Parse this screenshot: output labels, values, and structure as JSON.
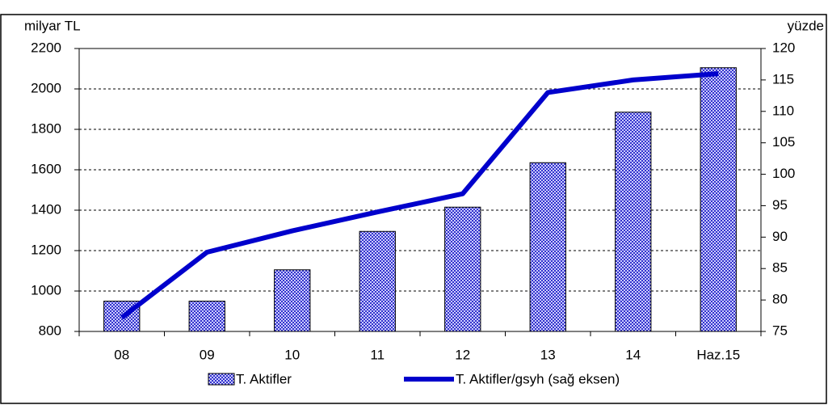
{
  "chart_data": {
    "type": "bar",
    "y_label": "milyar TL",
    "y2_label": "yüzde",
    "categories": [
      "08",
      "09",
      "10",
      "11",
      "12",
      "13",
      "14",
      "Haz.15"
    ],
    "series": [
      {
        "name": "T. Aktifler",
        "type": "bar",
        "color": "#3333cc",
        "values": [
          950,
          950,
          1105,
          1295,
          1415,
          1635,
          1885,
          2105
        ]
      },
      {
        "name": "T. Aktifler/gsyh (sağ eksen)",
        "type": "line",
        "axis": "y2",
        "color": "#0000cc",
        "values": [
          77.2,
          87.6,
          91,
          94,
          96.9,
          113,
          115,
          116
        ]
      }
    ],
    "ylim": [
      800,
      2200
    ],
    "yticks": [
      800,
      1000,
      1200,
      1400,
      1600,
      1800,
      2000,
      2200
    ],
    "y2lim": [
      75,
      120
    ],
    "y2ticks": [
      75,
      80,
      85,
      90,
      95,
      100,
      105,
      110,
      115,
      120
    ],
    "grid": true,
    "legend": "bottom"
  }
}
